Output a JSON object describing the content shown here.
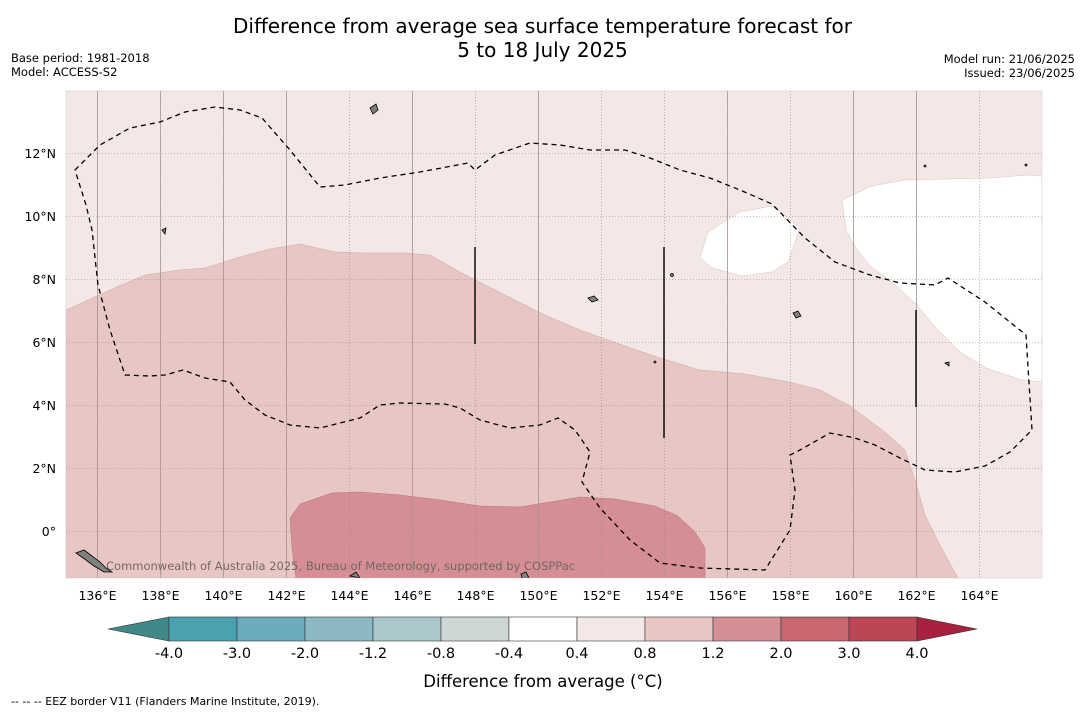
{
  "title": {
    "line1": "Difference from average sea surface temperature forecast for",
    "line2": "5 to 18 July 2025"
  },
  "meta_left": {
    "base_period": "Base period: 1981-2018",
    "model": "Model: ACCESS-S2"
  },
  "meta_right": {
    "model_run": "Model run: 21/06/2025",
    "issued": "Issued: 23/06/2025"
  },
  "map": {
    "lon_labels": [
      "136°E",
      "138°E",
      "140°E",
      "142°E",
      "144°E",
      "146°E",
      "148°E",
      "150°E",
      "152°E",
      "154°E",
      "156°E",
      "158°E",
      "160°E",
      "162°E",
      "164°E"
    ],
    "lat_labels": [
      "12°N",
      "10°N",
      "8°N",
      "6°N",
      "4°N",
      "2°N",
      "0°"
    ],
    "watermark": "Commonwealth of Australia 2025, Bureau of Meteorology, supported by COSPPac"
  },
  "colorbar": {
    "ticks": [
      "-4.0",
      "-3.0",
      "-2.0",
      "-1.2",
      "-0.8",
      "-0.4",
      "0.4",
      "0.8",
      "1.2",
      "2.0",
      "3.0",
      "4.0"
    ],
    "colors": [
      "#4aa2b1",
      "#6aacbb",
      "#8ab9c3",
      "#aac8cb",
      "#cdd6d4",
      "#ffffff",
      "#f4e8e7",
      "#e8c6c3",
      "#d68e95",
      "#c96670",
      "#bc4556"
    ],
    "under_color": "#3f8a88",
    "over_color": "#a8213e",
    "label": "Difference from average (°C)"
  },
  "footnote": "--  --  -- EEZ border V11 (Flanders Marine Institute, 2019)."
}
